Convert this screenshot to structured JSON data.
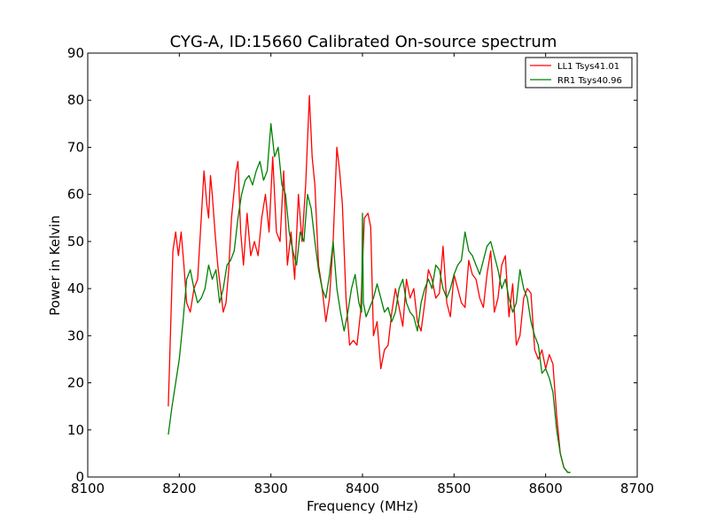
{
  "chart_data": {
    "type": "line",
    "title": "CYG-A, ID:15660 Calibrated On-source spectrum",
    "xlabel": "Frequency (MHz)",
    "ylabel": "Power in Kelvin",
    "xlim": [
      8100,
      8700
    ],
    "ylim": [
      0,
      90
    ],
    "xticks": [
      8100,
      8200,
      8300,
      8400,
      8500,
      8600,
      8700
    ],
    "yticks": [
      0,
      10,
      20,
      30,
      40,
      50,
      60,
      70,
      80,
      90
    ],
    "grid": false,
    "legend_position": "top-right",
    "series": [
      {
        "name": "LL1 Tsys41.01",
        "color": "#ff0000",
        "x": [
          8188,
          8193,
          8196,
          8199,
          8202,
          8205,
          8208,
          8212,
          8216,
          8220,
          8224,
          8227,
          8230,
          8232,
          8234,
          8236,
          8239,
          8242,
          8245,
          8248,
          8251,
          8254,
          8257,
          8260,
          8262,
          8264,
          8267,
          8270,
          8274,
          8278,
          8282,
          8286,
          8290,
          8294,
          8298,
          8302,
          8306,
          8310,
          8314,
          8318,
          8322,
          8326,
          8330,
          8334,
          8338,
          8342,
          8345,
          8348,
          8352,
          8356,
          8360,
          8364,
          8368,
          8372,
          8375,
          8378,
          8382,
          8386,
          8390,
          8394,
          8398,
          8402,
          8406,
          8409,
          8412,
          8416,
          8420,
          8424,
          8428,
          8432,
          8436,
          8440,
          8444,
          8448,
          8452,
          8456,
          8460,
          8464,
          8468,
          8472,
          8476,
          8480,
          8484,
          8488,
          8492,
          8496,
          8500,
          8504,
          8508,
          8512,
          8516,
          8520,
          8524,
          8528,
          8532,
          8536,
          8540,
          8544,
          8548,
          8552,
          8556,
          8560,
          8564,
          8568,
          8572,
          8576,
          8580,
          8584,
          8588,
          8592,
          8596,
          8600,
          8604,
          8608,
          8612,
          8616,
          8620,
          8624,
          8627
        ],
        "values": [
          15,
          48,
          52,
          47,
          52,
          45,
          37,
          35,
          40,
          42,
          55,
          65,
          58,
          55,
          64,
          60,
          52,
          45,
          40,
          35,
          37,
          44,
          55,
          61,
          65,
          67,
          52,
          45,
          56,
          47,
          50,
          47,
          55,
          60,
          52,
          68,
          52,
          50,
          65,
          45,
          52,
          42,
          60,
          50,
          62,
          81,
          68,
          62,
          45,
          40,
          33,
          38,
          50,
          70,
          65,
          58,
          38,
          28,
          29,
          28,
          35,
          55,
          56,
          53,
          30,
          33,
          23,
          27,
          28,
          35,
          40,
          36,
          32,
          42,
          38,
          40,
          33,
          31,
          37,
          44,
          42,
          38,
          39,
          49,
          37,
          34,
          43,
          40,
          37,
          36,
          46,
          43,
          42,
          38,
          36,
          43,
          48,
          35,
          38,
          45,
          47,
          34,
          41,
          28,
          30,
          38,
          40,
          39,
          27,
          25,
          27,
          23,
          26,
          24,
          13,
          5,
          2,
          1,
          1
        ]
      },
      {
        "name": "RR1 Tsys40.96",
        "color": "#008000",
        "x": [
          8188,
          8192,
          8196,
          8200,
          8204,
          8208,
          8212,
          8216,
          8220,
          8224,
          8228,
          8232,
          8236,
          8240,
          8244,
          8248,
          8252,
          8256,
          8260,
          8264,
          8268,
          8272,
          8276,
          8280,
          8284,
          8288,
          8292,
          8296,
          8300,
          8304,
          8308,
          8312,
          8316,
          8320,
          8324,
          8328,
          8332,
          8336,
          8340,
          8344,
          8348,
          8352,
          8356,
          8360,
          8364,
          8368,
          8372,
          8376,
          8380,
          8384,
          8388,
          8392,
          8396,
          8399,
          8400,
          8401,
          8404,
          8408,
          8412,
          8416,
          8420,
          8424,
          8428,
          8432,
          8436,
          8440,
          8444,
          8448,
          8452,
          8456,
          8460,
          8464,
          8468,
          8472,
          8476,
          8480,
          8484,
          8488,
          8492,
          8496,
          8500,
          8504,
          8508,
          8512,
          8516,
          8520,
          8524,
          8528,
          8532,
          8536,
          8540,
          8544,
          8548,
          8552,
          8556,
          8560,
          8564,
          8568,
          8572,
          8576,
          8580,
          8584,
          8588,
          8592,
          8596,
          8600,
          8604,
          8608,
          8612,
          8616,
          8620,
          8624,
          8627
        ],
        "values": [
          9,
          15,
          20,
          25,
          33,
          42,
          44,
          40,
          37,
          38,
          40,
          45,
          42,
          44,
          37,
          40,
          45,
          46,
          48,
          55,
          60,
          63,
          64,
          62,
          65,
          67,
          63,
          65,
          75,
          68,
          70,
          62,
          60,
          52,
          48,
          45,
          52,
          50,
          60,
          57,
          50,
          44,
          40,
          38,
          43,
          50,
          40,
          35,
          31,
          35,
          40,
          43,
          37,
          35,
          56,
          37,
          34,
          36,
          38,
          41,
          38,
          35,
          36,
          33,
          35,
          40,
          42,
          37,
          35,
          34,
          31,
          37,
          40,
          42,
          40,
          45,
          44,
          40,
          38,
          40,
          43,
          45,
          46,
          52,
          48,
          47,
          45,
          43,
          46,
          49,
          50,
          47,
          44,
          40,
          42,
          38,
          35,
          37,
          44,
          40,
          38,
          33,
          30,
          28,
          22,
          23,
          21,
          18,
          10,
          5,
          2,
          1,
          1
        ]
      }
    ]
  }
}
